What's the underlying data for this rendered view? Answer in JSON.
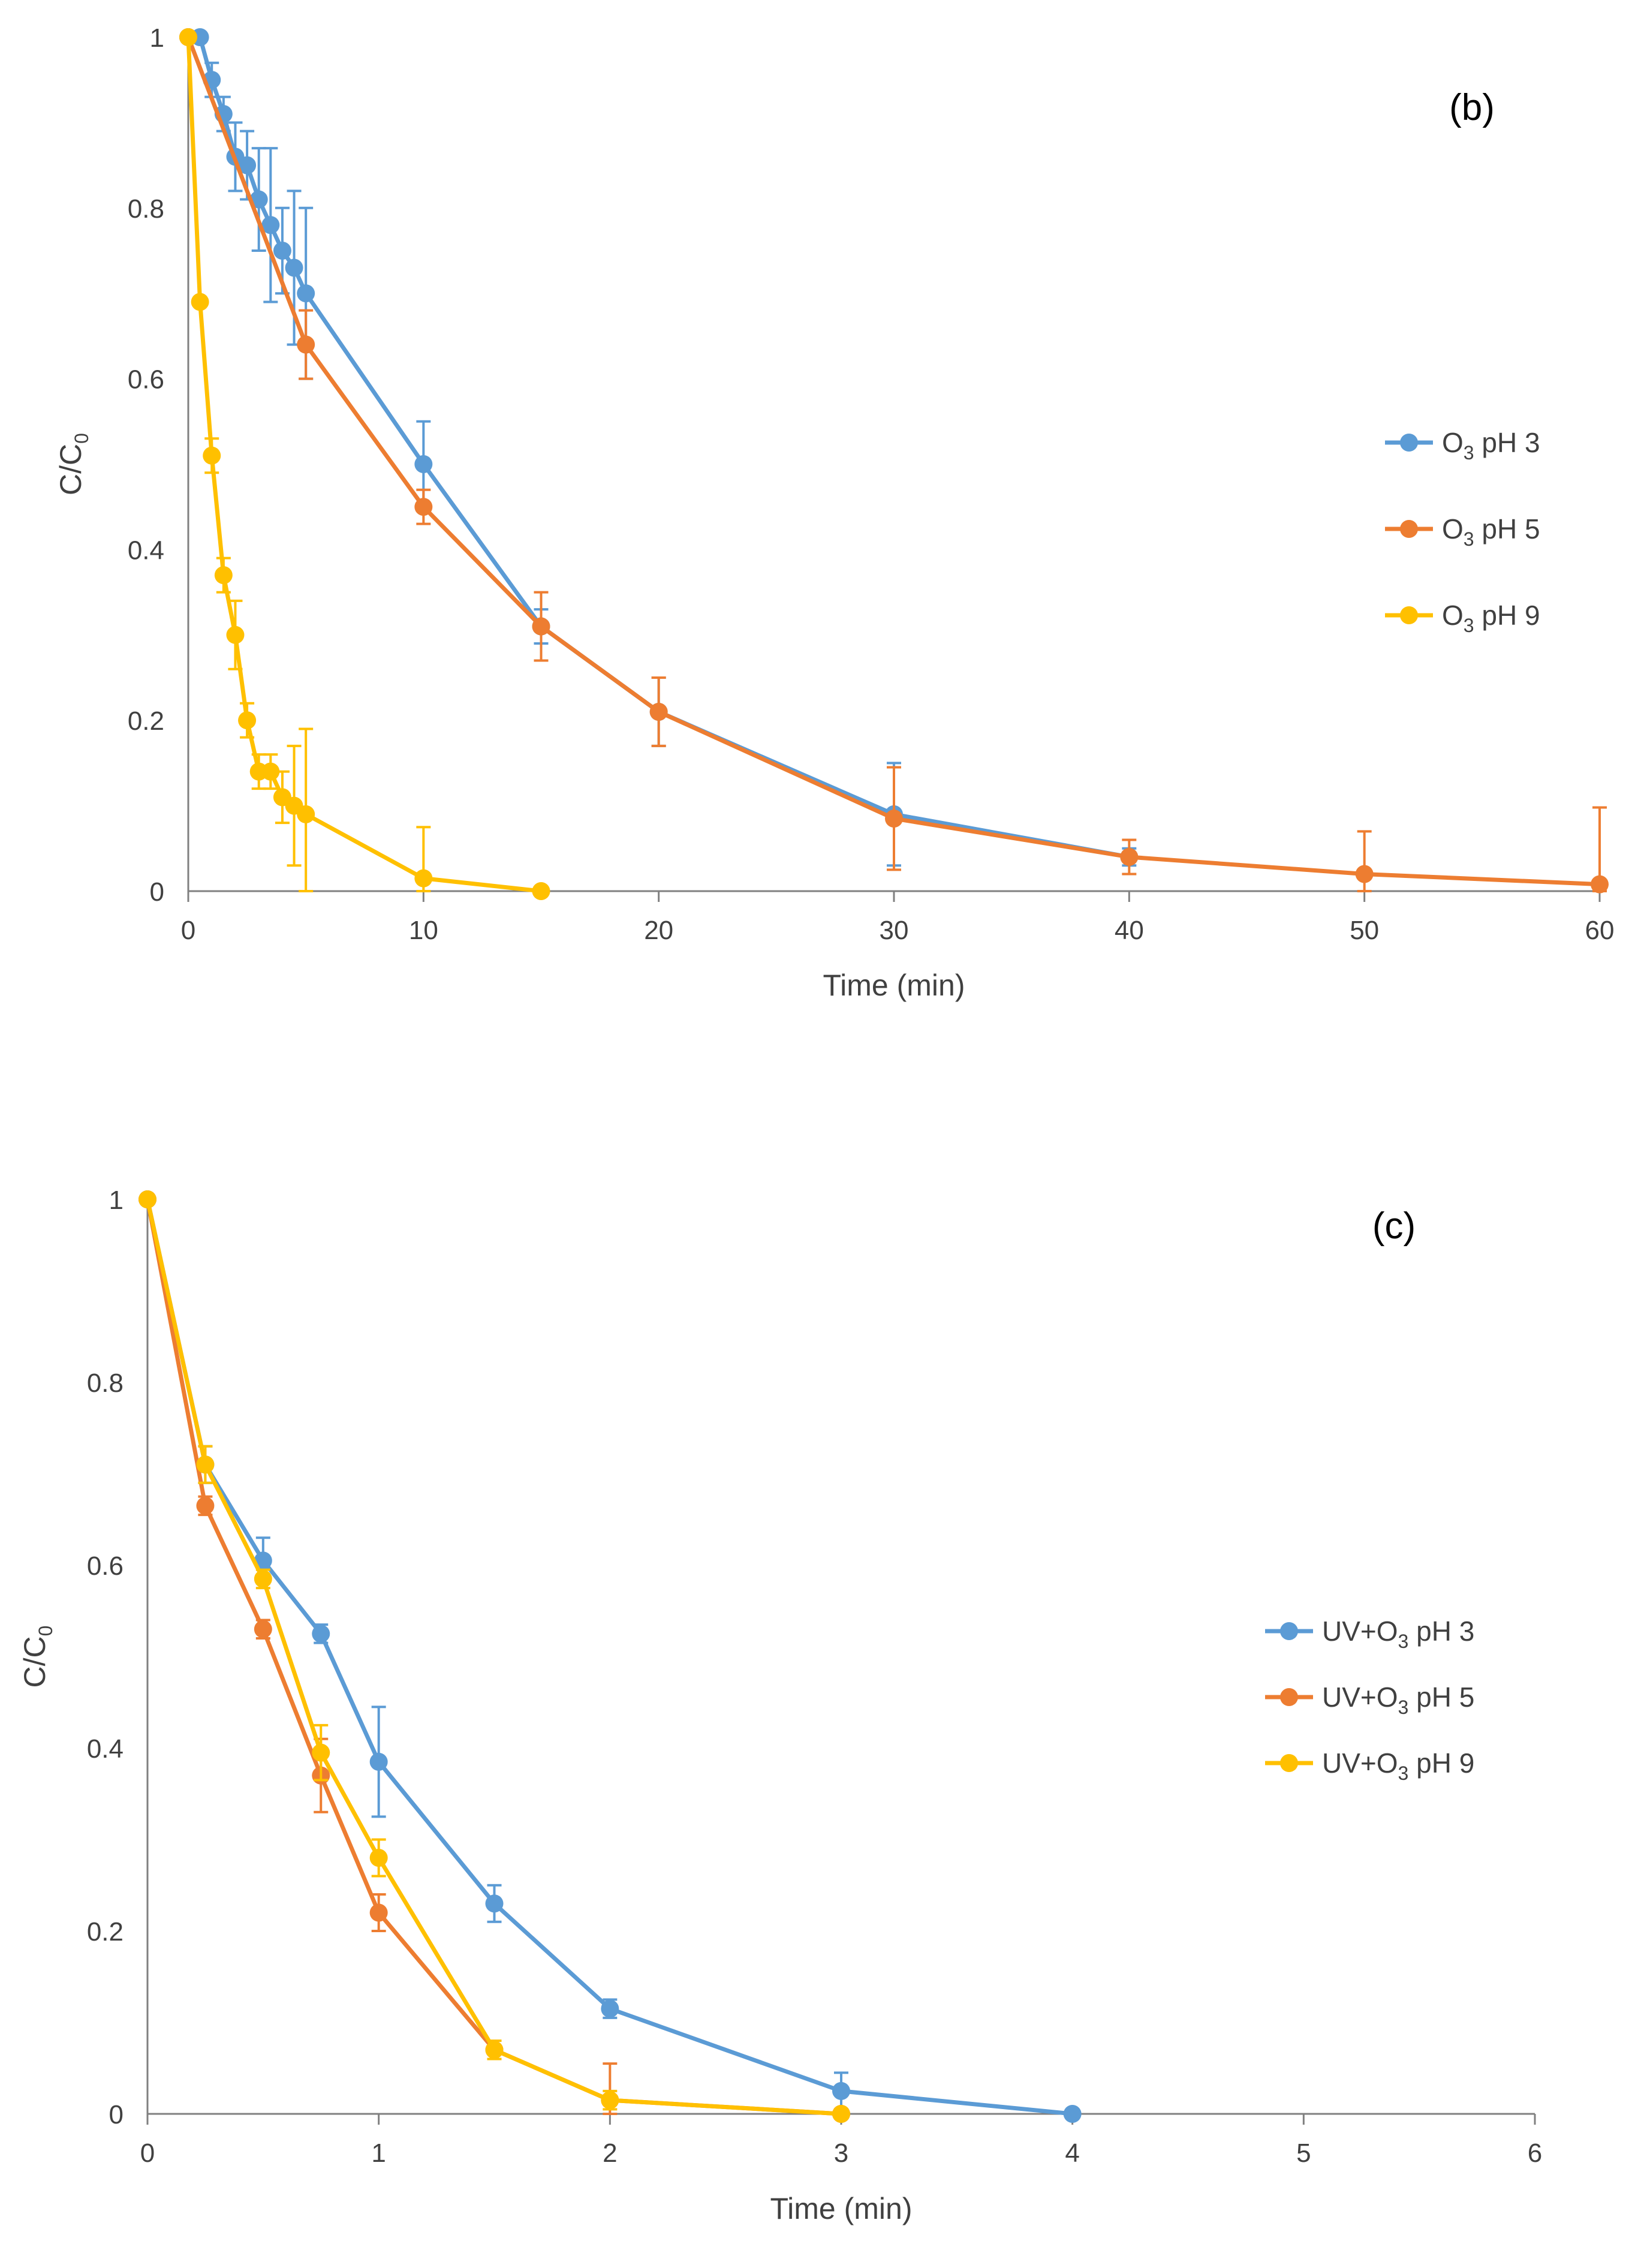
{
  "chart_data": [
    {
      "type": "line",
      "panel_label": "(b)",
      "xlabel": "Time (min)",
      "ylabel": "C/C₀",
      "xlim": [
        0,
        60
      ],
      "ylim": [
        0,
        1
      ],
      "xticks": [
        "0",
        "10",
        "20",
        "30",
        "40",
        "50",
        "60"
      ],
      "yticks": [
        "0",
        "0.2",
        "0.4",
        "0.6",
        "0.8",
        "1"
      ],
      "legend_position": "right",
      "grid": false,
      "series": [
        {
          "name": "O₃ pH 3",
          "color": "#5B9BD5",
          "x": [
            0,
            0.5,
            1,
            1.5,
            2,
            2.5,
            3,
            3.5,
            4,
            4.5,
            5,
            10,
            15,
            20,
            30,
            40
          ],
          "y": [
            1.0,
            1.0,
            0.95,
            0.91,
            0.86,
            0.85,
            0.81,
            0.78,
            0.75,
            0.73,
            0.7,
            0.5,
            0.31,
            0.21,
            0.09,
            0.04
          ],
          "err": [
            0,
            0,
            0.02,
            0.02,
            0.04,
            0.04,
            0.06,
            0.09,
            0.05,
            0.09,
            0.1,
            0.05,
            0.02,
            0.04,
            0.06,
            0.01
          ]
        },
        {
          "name": "O₃ pH 5",
          "color": "#ED7D31",
          "x": [
            0,
            5,
            10,
            15,
            20,
            30,
            40,
            50,
            60
          ],
          "y": [
            1.0,
            0.64,
            0.45,
            0.31,
            0.21,
            0.085,
            0.04,
            0.02,
            0.008
          ],
          "err": [
            0,
            0.04,
            0.02,
            0.04,
            0.04,
            0.06,
            0.02,
            0.05,
            0.09
          ]
        },
        {
          "name": "O₃ pH 9",
          "color": "#FFC000",
          "x": [
            0,
            0.5,
            1,
            1.5,
            2,
            2.5,
            3,
            3.5,
            4,
            4.5,
            5,
            10,
            15
          ],
          "y": [
            1.0,
            0.69,
            0.51,
            0.37,
            0.3,
            0.2,
            0.14,
            0.14,
            0.11,
            0.1,
            0.09,
            0.015,
            0.0
          ],
          "err": [
            0,
            0,
            0.02,
            0.02,
            0.04,
            0.02,
            0.02,
            0.02,
            0.03,
            0.07,
            0.1,
            0.06,
            0
          ]
        }
      ]
    },
    {
      "type": "line",
      "panel_label": "(c)",
      "xlabel": "Time (min)",
      "ylabel": "C/C₀",
      "xlim": [
        0,
        6
      ],
      "ylim": [
        0,
        1
      ],
      "xticks": [
        "0",
        "1",
        "2",
        "3",
        "4",
        "5",
        "6"
      ],
      "yticks": [
        "0",
        "0.2",
        "0.4",
        "0.6",
        "0.8",
        "1"
      ],
      "legend_position": "right",
      "grid": false,
      "series": [
        {
          "name": "UV+O₃ pH 3",
          "color": "#5B9BD5",
          "x": [
            0,
            0.25,
            0.5,
            0.75,
            1,
            1.5,
            2,
            3,
            4
          ],
          "y": [
            1.0,
            0.71,
            0.605,
            0.525,
            0.385,
            0.23,
            0.115,
            0.025,
            0.0
          ],
          "err": [
            0,
            0.02,
            0.025,
            0.01,
            0.06,
            0.02,
            0.01,
            0.02,
            0
          ]
        },
        {
          "name": "UV+O₃ pH 5",
          "color": "#ED7D31",
          "x": [
            0,
            0.25,
            0.5,
            0.75,
            1,
            1.5,
            2,
            3
          ],
          "y": [
            1.0,
            0.665,
            0.53,
            0.37,
            0.22,
            0.07,
            0.015,
            0.0
          ],
          "err": [
            0,
            0.01,
            0.01,
            0.04,
            0.02,
            0.01,
            0.04,
            0
          ]
        },
        {
          "name": "UV+O₃ pH 9",
          "color": "#FFC000",
          "x": [
            0,
            0.25,
            0.5,
            0.75,
            1,
            1.5,
            2,
            3
          ],
          "y": [
            1.0,
            0.71,
            0.585,
            0.395,
            0.28,
            0.07,
            0.015,
            0.0
          ],
          "err": [
            0,
            0.02,
            0.01,
            0.03,
            0.02,
            0.01,
            0.01,
            0
          ]
        }
      ]
    }
  ]
}
